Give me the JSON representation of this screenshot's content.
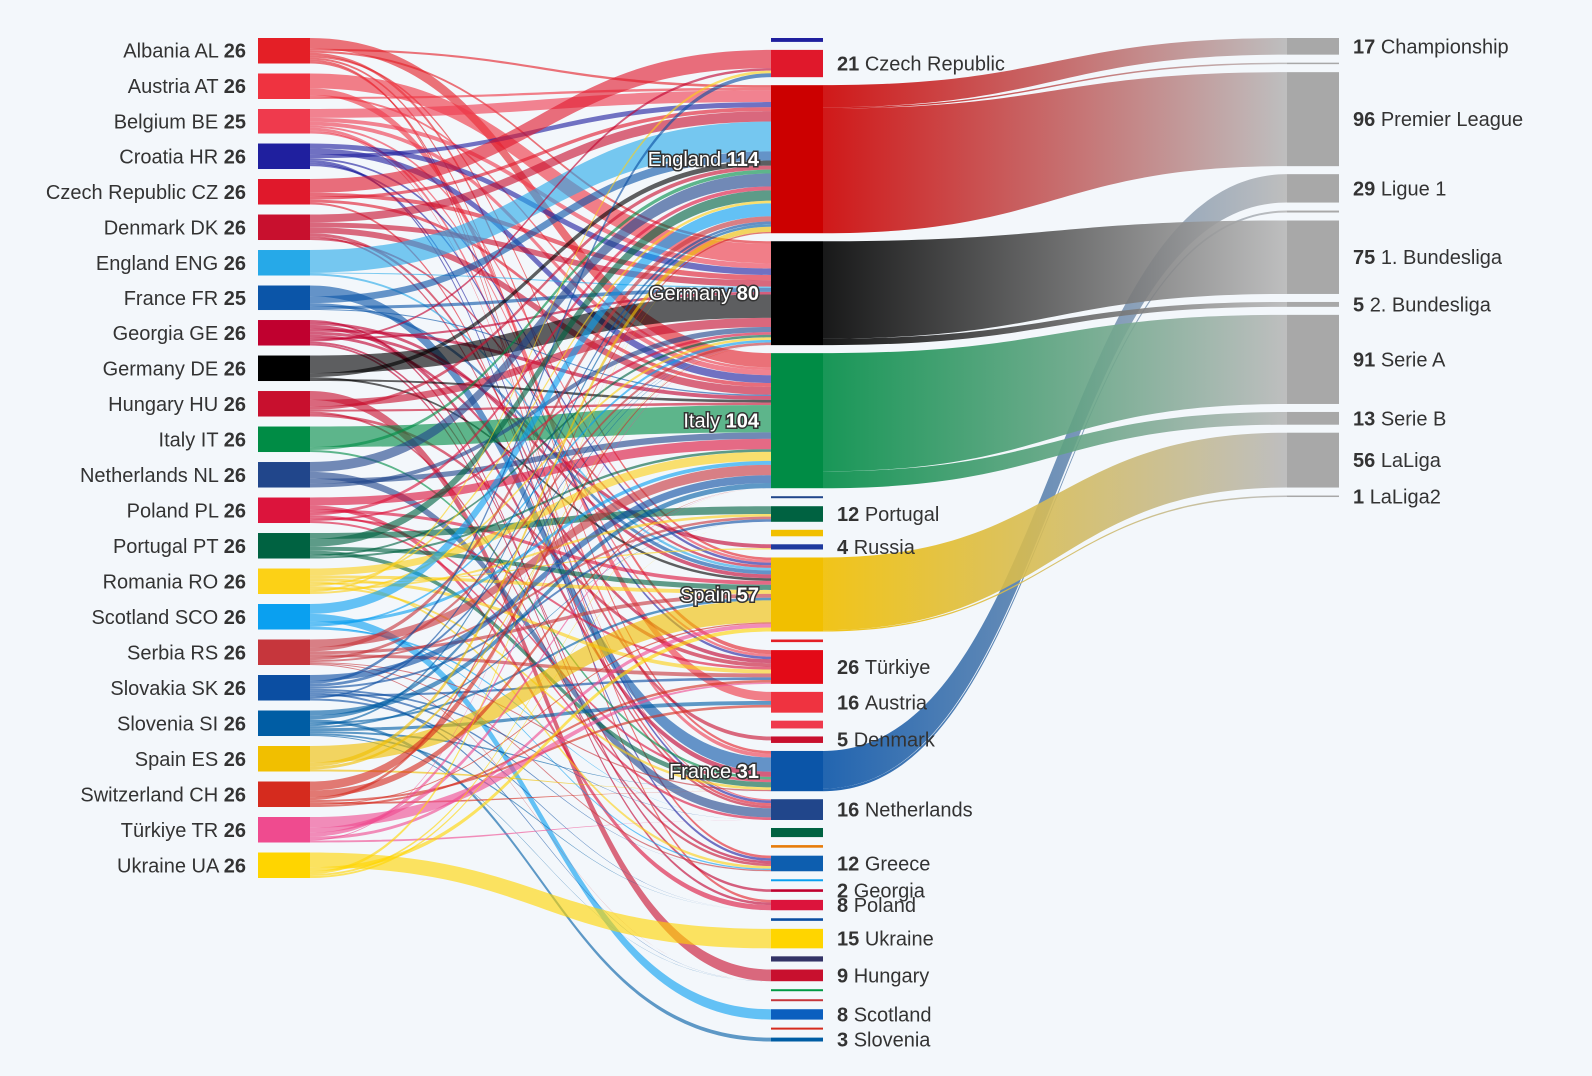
{
  "chart_data": {
    "type": "sankey",
    "teams": [
      {
        "name": "Albania",
        "flag": "AL",
        "count": 26,
        "color": "#e41f26"
      },
      {
        "name": "Austria",
        "flag": "AT",
        "count": 26,
        "color": "#ef3340"
      },
      {
        "name": "Belgium",
        "flag": "BE",
        "count": 25,
        "color": "#ef3a4d"
      },
      {
        "name": "Croatia",
        "flag": "HR",
        "count": 26,
        "color": "#1f1f9e"
      },
      {
        "name": "Czech Republic",
        "flag": "CZ",
        "count": 26,
        "color": "#e0182b"
      },
      {
        "name": "Denmark",
        "flag": "DK",
        "count": 26,
        "color": "#c8102e"
      },
      {
        "name": "England",
        "flag": "ENG",
        "count": 26,
        "color": "#26a9e8"
      },
      {
        "name": "France",
        "flag": "FR",
        "count": 25,
        "color": "#0b55a8"
      },
      {
        "name": "Georgia",
        "flag": "GE",
        "count": 26,
        "color": "#c0002f"
      },
      {
        "name": "Germany",
        "flag": "DE",
        "count": 26,
        "color": "#000000"
      },
      {
        "name": "Hungary",
        "flag": "HU",
        "count": 26,
        "color": "#c8102e"
      },
      {
        "name": "Italy",
        "flag": "IT",
        "count": 26,
        "color": "#008c45"
      },
      {
        "name": "Netherlands",
        "flag": "NL",
        "count": 26,
        "color": "#21468b"
      },
      {
        "name": "Poland",
        "flag": "PL",
        "count": 26,
        "color": "#dc143c"
      },
      {
        "name": "Portugal",
        "flag": "PT",
        "count": 26,
        "color": "#006241"
      },
      {
        "name": "Romania",
        "flag": "RO",
        "count": 26,
        "color": "#fcd116"
      },
      {
        "name": "Scotland",
        "flag": "SCO",
        "count": 26,
        "color": "#0aa0f0"
      },
      {
        "name": "Serbia",
        "flag": "RS",
        "count": 26,
        "color": "#c6363c"
      },
      {
        "name": "Slovakia",
        "flag": "SK",
        "count": 26,
        "color": "#0b4ea2"
      },
      {
        "name": "Slovenia",
        "flag": "SI",
        "count": 26,
        "color": "#005da4"
      },
      {
        "name": "Spain",
        "flag": "ES",
        "count": 26,
        "color": "#f1bf00"
      },
      {
        "name": "Switzerland",
        "flag": "CH",
        "count": 26,
        "color": "#d52b1e"
      },
      {
        "name": "Türkiye",
        "flag": "TR",
        "count": 26,
        "color": "#ef4b8f"
      },
      {
        "name": "Ukraine",
        "flag": "UA",
        "count": 26,
        "color": "#ffd500"
      }
    ],
    "club_countries": [
      {
        "name": "",
        "count": 3,
        "color": "#1f1f9e"
      },
      {
        "name": "Czech Republic",
        "count": 21,
        "color": "#e0182b",
        "labeled": true
      },
      {
        "name": "England",
        "count": 114,
        "color": "#cc0000",
        "labeled": true,
        "inside": true
      },
      {
        "name": "Germany",
        "count": 80,
        "color": "#000000",
        "labeled": true,
        "inside": true
      },
      {
        "name": "Italy",
        "count": 104,
        "color": "#008c45",
        "labeled": true,
        "inside": true
      },
      {
        "name": "",
        "count": 1,
        "color": "#21468b"
      },
      {
        "name": "Portugal",
        "count": 12,
        "color": "#006241",
        "labeled": true
      },
      {
        "name": "",
        "count": 5,
        "color": "#f1bf00"
      },
      {
        "name": "Russia",
        "count": 4,
        "color": "#1f3a9e",
        "labeled": true
      },
      {
        "name": "Spain",
        "count": 57,
        "color": "#f1bf00",
        "labeled": true,
        "inside": true
      },
      {
        "name": "",
        "count": 2,
        "color": "#e41f26"
      },
      {
        "name": "Türkiye",
        "count": 26,
        "color": "#e30a17",
        "labeled": true
      },
      {
        "name": "Austria",
        "count": 16,
        "color": "#ef3340",
        "labeled": true
      },
      {
        "name": "",
        "count": 6,
        "color": "#ef3a4d"
      },
      {
        "name": "Denmark",
        "count": 5,
        "color": "#c8102e",
        "labeled": true
      },
      {
        "name": "France",
        "count": 31,
        "color": "#0b55a8",
        "labeled": true,
        "inside": true
      },
      {
        "name": "Netherlands",
        "count": 16,
        "color": "#21468b",
        "labeled": true
      },
      {
        "name": "",
        "count": 7,
        "color": "#006241"
      },
      {
        "name": "",
        "count": 2,
        "color": "#e77c0a"
      },
      {
        "name": "Greece",
        "count": 12,
        "color": "#0d5eaf",
        "labeled": true
      },
      {
        "name": "",
        "count": 1,
        "color": "#0aa0f0"
      },
      {
        "name": "Georgia",
        "count": 2,
        "color": "#c0002f",
        "labeled": true
      },
      {
        "name": "Poland",
        "count": 8,
        "color": "#dc143c",
        "labeled": true
      },
      {
        "name": "",
        "count": 2,
        "color": "#0b4ea2"
      },
      {
        "name": "Ukraine",
        "count": 15,
        "color": "#ffd500",
        "labeled": true
      },
      {
        "name": "",
        "count": 4,
        "color": "#333366"
      },
      {
        "name": "Hungary",
        "count": 9,
        "color": "#c8102e",
        "labeled": true
      },
      {
        "name": "",
        "count": 1,
        "color": "#009a44"
      },
      {
        "name": "",
        "count": 1,
        "color": "#c6363c"
      },
      {
        "name": "Scotland",
        "count": 8,
        "color": "#0b5fbf",
        "labeled": true
      },
      {
        "name": "",
        "count": 1,
        "color": "#d52b1e"
      },
      {
        "name": "Slovenia",
        "count": 3,
        "color": "#005da4",
        "labeled": true
      }
    ],
    "leagues": [
      {
        "name": "Championship",
        "count": 17,
        "from": "England",
        "from_color": "#cc0000"
      },
      {
        "name": "",
        "count": 1,
        "from": "England",
        "from_color": "#cc0000"
      },
      {
        "name": "Premier League",
        "count": 96,
        "from": "England",
        "from_color": "#cc0000"
      },
      {
        "name": "Ligue 1",
        "count": 29,
        "from": "France",
        "from_color": "#0b55a8"
      },
      {
        "name": "",
        "count": 2,
        "from": "France",
        "from_color": "#0b55a8"
      },
      {
        "name": "1. Bundesliga",
        "count": 75,
        "from": "Germany",
        "from_color": "#000000"
      },
      {
        "name": "2. Bundesliga",
        "count": 5,
        "from": "Germany",
        "from_color": "#000000"
      },
      {
        "name": "Serie A",
        "count": 91,
        "from": "Italy",
        "from_color": "#008c45"
      },
      {
        "name": "Serie B",
        "count": 13,
        "from": "Italy",
        "from_color": "#008c45"
      },
      {
        "name": "LaLiga",
        "count": 56,
        "from": "Spain",
        "from_color": "#f1bf00"
      },
      {
        "name": "LaLiga2",
        "count": 1,
        "from": "Spain",
        "from_color": "#f1bf00"
      }
    ],
    "flows": [
      [
        "Albania",
        "Italy",
        11
      ],
      [
        "Albania",
        "England",
        2
      ],
      [
        "Albania",
        "Germany",
        2
      ],
      [
        "Albania",
        "Türkiye",
        3
      ],
      [
        "Albania",
        "Spain",
        2
      ],
      [
        "Albania",
        "France",
        2
      ],
      [
        "Albania",
        "Poland",
        2
      ],
      [
        "Albania",
        "Greece",
        2
      ],
      [
        "Austria",
        "Germany",
        15
      ],
      [
        "Austria",
        "Austria",
        7
      ],
      [
        "Austria",
        "Italy",
        2
      ],
      [
        "Austria",
        "England",
        2
      ],
      [
        "Belgium",
        "England",
        9
      ],
      [
        "Belgium",
        "Germany",
        4
      ],
      [
        "Belgium",
        "Italy",
        4
      ],
      [
        "Belgium",
        "Spain",
        2
      ],
      [
        "Belgium",
        "France",
        3
      ],
      [
        "Belgium",
        "Netherlands",
        1
      ],
      [
        "Belgium",
        "Türkiye",
        2
      ],
      [
        "Croatia",
        "Germany",
        5
      ],
      [
        "Croatia",
        "Italy",
        6
      ],
      [
        "Croatia",
        "England",
        4
      ],
      [
        "Croatia",
        "Spain",
        2
      ],
      [
        "Croatia",
        "Croatia",
        3
      ],
      [
        "Croatia",
        "Greece",
        2
      ],
      [
        "Croatia",
        "Netherlands",
        2
      ],
      [
        "Croatia",
        "Türkiye",
        2
      ],
      [
        "Czech Republic",
        "Czech Republic",
        14
      ],
      [
        "Czech Republic",
        "Germany",
        4
      ],
      [
        "Czech Republic",
        "England",
        3
      ],
      [
        "Czech Republic",
        "Italy",
        3
      ],
      [
        "Czech Republic",
        "Netherlands",
        2
      ],
      [
        "Denmark",
        "England",
        8
      ],
      [
        "Denmark",
        "Germany",
        5
      ],
      [
        "Denmark",
        "Italy",
        6
      ],
      [
        "Denmark",
        "Denmark",
        3
      ],
      [
        "Denmark",
        "Netherlands",
        2
      ],
      [
        "Denmark",
        "Spain",
        2
      ],
      [
        "England",
        "England",
        23
      ],
      [
        "England",
        "Germany",
        1
      ],
      [
        "England",
        "Spain",
        2
      ],
      [
        "France",
        "France",
        11
      ],
      [
        "France",
        "England",
        7
      ],
      [
        "France",
        "Spain",
        3
      ],
      [
        "France",
        "Germany",
        3
      ],
      [
        "France",
        "Italy",
        1
      ],
      [
        "Georgia",
        "Georgia",
        2
      ],
      [
        "Georgia",
        "Spain",
        3
      ],
      [
        "Georgia",
        "France",
        4
      ],
      [
        "Georgia",
        "Italy",
        3
      ],
      [
        "Georgia",
        "Russia",
        3
      ],
      [
        "Georgia",
        "Türkiye",
        3
      ],
      [
        "Georgia",
        "Germany",
        2
      ],
      [
        "Georgia",
        "Czech Republic",
        2
      ],
      [
        "Georgia",
        "Greece",
        2
      ],
      [
        "Georgia",
        "Poland",
        2
      ],
      [
        "Germany",
        "Germany",
        18
      ],
      [
        "Germany",
        "England",
        4
      ],
      [
        "Germany",
        "Spain",
        2
      ],
      [
        "Germany",
        "Italy",
        2
      ],
      [
        "Hungary",
        "Hungary",
        9
      ],
      [
        "Hungary",
        "Germany",
        7
      ],
      [
        "Hungary",
        "England",
        3
      ],
      [
        "Hungary",
        "Italy",
        2
      ],
      [
        "Hungary",
        "Greece",
        2
      ],
      [
        "Hungary",
        "Türkiye",
        3
      ],
      [
        "Italy",
        "Italy",
        21
      ],
      [
        "Italy",
        "England",
        3
      ],
      [
        "Italy",
        "France",
        2
      ],
      [
        "Netherlands",
        "England",
        10
      ],
      [
        "Netherlands",
        "Netherlands",
        7
      ],
      [
        "Netherlands",
        "Italy",
        5
      ],
      [
        "Netherlands",
        "Germany",
        4
      ],
      [
        "Poland",
        "Italy",
        8
      ],
      [
        "Poland",
        "Poland",
        4
      ],
      [
        "Poland",
        "Spain",
        3
      ],
      [
        "Poland",
        "England",
        3
      ],
      [
        "Poland",
        "France",
        2
      ],
      [
        "Poland",
        "Türkiye",
        2
      ],
      [
        "Poland",
        "Germany",
        2
      ],
      [
        "Poland",
        "Netherlands",
        2
      ],
      [
        "Portugal",
        "Portugal",
        6
      ],
      [
        "Portugal",
        "England",
        8
      ],
      [
        "Portugal",
        "Spain",
        4
      ],
      [
        "Portugal",
        "France",
        4
      ],
      [
        "Portugal",
        "Germany",
        2
      ],
      [
        "Portugal",
        "Italy",
        2
      ],
      [
        "Romania",
        "Italy",
        7
      ],
      [
        "Romania",
        "Spain",
        3
      ],
      [
        "Romania",
        "Türkiye",
        3
      ],
      [
        "Romania",
        "Greece",
        2
      ],
      [
        "Romania",
        "Russia",
        1
      ],
      [
        "Romania",
        "England",
        2
      ],
      [
        "Romania",
        "France",
        2
      ],
      [
        "Romania",
        "Portugal",
        2
      ],
      [
        "Romania",
        "Czech Republic",
        2
      ],
      [
        "Romania",
        "Germany",
        2
      ],
      [
        "Scotland",
        "England",
        10
      ],
      [
        "Scotland",
        "Scotland",
        8
      ],
      [
        "Scotland",
        "Italy",
        3
      ],
      [
        "Scotland",
        "Germany",
        2
      ],
      [
        "Scotland",
        "Greece",
        1
      ],
      [
        "Scotland",
        "Netherlands",
        2
      ],
      [
        "Serbia",
        "Italy",
        8
      ],
      [
        "Serbia",
        "England",
        4
      ],
      [
        "Serbia",
        "Spain",
        3
      ],
      [
        "Serbia",
        "Türkiye",
        3
      ],
      [
        "Serbia",
        "Germany",
        3
      ],
      [
        "Serbia",
        "Portugal",
        2
      ],
      [
        "Serbia",
        "France",
        1
      ],
      [
        "Serbia",
        "Greece",
        1
      ],
      [
        "Serbia",
        "Hungary",
        1
      ],
      [
        "Slovakia",
        "Italy",
        6
      ],
      [
        "Slovakia",
        "Czech Republic",
        3
      ],
      [
        "Slovakia",
        "Germany",
        3
      ],
      [
        "Slovakia",
        "Portugal",
        2
      ],
      [
        "Slovakia",
        "Netherlands",
        2
      ],
      [
        "Slovakia",
        "Greece",
        2
      ],
      [
        "Slovakia",
        "Hungary",
        2
      ],
      [
        "Slovakia",
        "Türkiye",
        2
      ],
      [
        "Slovakia",
        "England",
        2
      ],
      [
        "Slovakia",
        "Poland",
        2
      ],
      [
        "Slovenia",
        "Italy",
        5
      ],
      [
        "Slovenia",
        "Germany",
        4
      ],
      [
        "Slovenia",
        "Slovenia",
        3
      ],
      [
        "Slovenia",
        "Spain",
        2
      ],
      [
        "Slovenia",
        "England",
        2
      ],
      [
        "Slovenia",
        "Portugal",
        2
      ],
      [
        "Slovenia",
        "Austria",
        3
      ],
      [
        "Slovenia",
        "France",
        2
      ],
      [
        "Slovenia",
        "Poland",
        2
      ],
      [
        "Slovenia",
        "Hungary",
        1
      ],
      [
        "Spain",
        "Spain",
        17
      ],
      [
        "Spain",
        "England",
        4
      ],
      [
        "Spain",
        "Germany",
        3
      ],
      [
        "Spain",
        "France",
        2
      ],
      [
        "Switzerland",
        "Germany",
        9
      ],
      [
        "Switzerland",
        "Italy",
        7
      ],
      [
        "Switzerland",
        "England",
        3
      ],
      [
        "Switzerland",
        "Austria",
        2
      ],
      [
        "Switzerland",
        "France",
        2
      ],
      [
        "Switzerland",
        "Spain",
        1
      ],
      [
        "Switzerland",
        "Türkiye",
        2
      ],
      [
        "Türkiye",
        "Türkiye",
        11
      ],
      [
        "Türkiye",
        "Italy",
        5
      ],
      [
        "Türkiye",
        "Germany",
        4
      ],
      [
        "Türkiye",
        "Spain",
        3
      ],
      [
        "Türkiye",
        "England",
        1
      ],
      [
        "Türkiye",
        "Netherlands",
        2
      ],
      [
        "Ukraine",
        "Ukraine",
        15
      ],
      [
        "Ukraine",
        "Spain",
        4
      ],
      [
        "Ukraine",
        "England",
        3
      ],
      [
        "Ukraine",
        "Italy",
        2
      ],
      [
        "Ukraine",
        "Portugal",
        2
      ]
    ]
  }
}
